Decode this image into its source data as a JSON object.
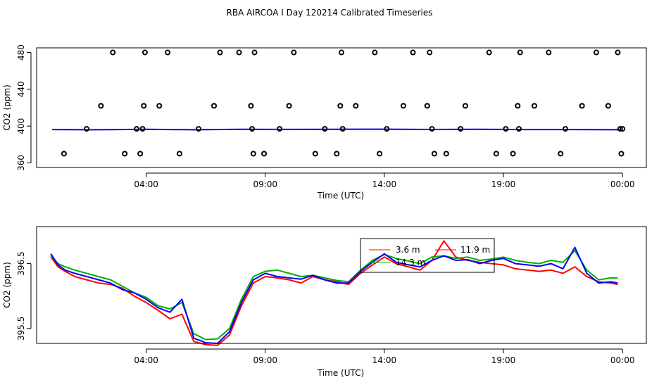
{
  "title": "RBA AIRCOA I  Day 120214  Calibrated Timeseries",
  "chart_data": [
    {
      "type": "line+scatter",
      "name": "top-panel",
      "xlabel": "Time (UTC)",
      "ylabel": "CO2 (ppm)",
      "x_unit": "hours since 00:00",
      "xlim": [
        -0.6,
        25.0
      ],
      "ylim": [
        355,
        485
      ],
      "xticks": [
        4,
        9,
        14,
        19,
        24
      ],
      "xtick_labels": [
        "04:00",
        "09:00",
        "14:00",
        "19:00",
        "00:00"
      ],
      "yticks": [
        360,
        400,
        440,
        480
      ],
      "ytick_labels": [
        "360",
        "400",
        "440",
        "480"
      ],
      "line_series": [
        {
          "name": "blue",
          "color": "#0000ff",
          "x": [
            0.05,
            2,
            4,
            6,
            8,
            10,
            12,
            14,
            16,
            18,
            20,
            22,
            23.9
          ],
          "y": [
            396.2,
            396.0,
            396.5,
            396.0,
            396.5,
            396.4,
            396.5,
            396.6,
            396.3,
            396.5,
            396.2,
            396.2,
            396.0
          ]
        }
      ],
      "points": {
        "x": [
          0.55,
          1.5,
          2.1,
          2.6,
          3.1,
          3.6,
          3.75,
          3.85,
          3.9,
          3.95,
          4.55,
          4.9,
          5.4,
          6.2,
          6.85,
          7.1,
          7.9,
          8.4,
          8.45,
          8.5,
          8.55,
          8.95,
          9.6,
          10.0,
          10.2,
          11.1,
          11.5,
          12.0,
          12.15,
          12.2,
          12.25,
          12.8,
          13.6,
          13.8,
          14.1,
          14.8,
          15.2,
          15.8,
          15.9,
          16.0,
          16.1,
          16.6,
          17.2,
          17.4,
          18.4,
          18.7,
          19.1,
          19.4,
          19.6,
          19.65,
          19.7,
          20.3,
          20.9,
          21.4,
          21.6,
          22.3,
          22.9,
          23.4,
          23.8,
          23.9,
          23.95,
          24.0
        ],
        "y": [
          370,
          397,
          422,
          480,
          370,
          397,
          370,
          397,
          422,
          480,
          422,
          480,
          370,
          397,
          422,
          480,
          480,
          422,
          397,
          370,
          480,
          370,
          397,
          422,
          480,
          370,
          397,
          370,
          422,
          480,
          397,
          422,
          480,
          370,
          397,
          422,
          480,
          422,
          480,
          397,
          370,
          370,
          397,
          422,
          480,
          370,
          397,
          370,
          422,
          397,
          480,
          422,
          480,
          370,
          397,
          422,
          480,
          422,
          480,
          397,
          370,
          397
        ]
      }
    },
    {
      "type": "line",
      "name": "bottom-panel",
      "xlabel": "Time (UTC)",
      "ylabel": "CO2 (ppm)",
      "x_unit": "hours since 00:00",
      "xlim": [
        -0.6,
        25.0
      ],
      "ylim": [
        395.27,
        397.07
      ],
      "xticks": [
        4,
        9,
        14,
        19,
        24
      ],
      "xtick_labels": [
        "04:00",
        "09:00",
        "14:00",
        "19:00",
        "00:00"
      ],
      "yticks": [
        395.5,
        396.5
      ],
      "ytick_labels": [
        "395.5",
        "396.5"
      ],
      "legend_position": "top-right",
      "series": [
        {
          "name": "3.6 m",
          "color": "#ff0000",
          "x": [
            0.0,
            0.3,
            0.6,
            1.0,
            1.5,
            2.0,
            2.5,
            3.0,
            3.5,
            4.0,
            4.5,
            5.0,
            5.5,
            6.0,
            6.5,
            7.0,
            7.5,
            8.0,
            8.5,
            9.0,
            9.5,
            10.0,
            10.5,
            11.0,
            11.5,
            12.0,
            12.5,
            13.0,
            13.5,
            14.0,
            14.5,
            15.0,
            15.5,
            16.0,
            16.5,
            17.0,
            17.5,
            18.0,
            18.5,
            19.0,
            19.5,
            20.0,
            20.5,
            21.0,
            21.5,
            22.0,
            22.5,
            23.0,
            23.5,
            23.8
          ],
          "y": [
            396.6,
            396.45,
            396.38,
            396.3,
            396.25,
            396.2,
            396.18,
            396.12,
            396.0,
            395.9,
            395.78,
            395.65,
            395.72,
            395.3,
            395.25,
            395.24,
            395.4,
            395.85,
            396.2,
            396.3,
            396.28,
            396.25,
            396.2,
            396.3,
            396.25,
            396.22,
            396.18,
            396.35,
            396.48,
            396.6,
            396.5,
            396.45,
            396.4,
            396.55,
            396.85,
            396.6,
            396.55,
            396.52,
            396.5,
            396.48,
            396.42,
            396.4,
            396.38,
            396.4,
            396.35,
            396.45,
            396.3,
            396.22,
            396.2,
            396.18
          ]
        },
        {
          "name": "11.9 m",
          "color": "#00b000",
          "x": [
            0.0,
            0.3,
            0.6,
            1.0,
            1.5,
            2.0,
            2.5,
            3.0,
            3.5,
            4.0,
            4.5,
            5.0,
            5.5,
            6.0,
            6.5,
            7.0,
            7.5,
            8.0,
            8.5,
            9.0,
            9.5,
            10.0,
            10.5,
            11.0,
            11.5,
            12.0,
            12.5,
            13.0,
            13.5,
            14.0,
            14.5,
            15.0,
            15.5,
            16.0,
            16.5,
            17.0,
            17.5,
            18.0,
            18.5,
            19.0,
            19.5,
            20.0,
            20.5,
            21.0,
            21.5,
            22.0,
            22.5,
            23.0,
            23.5,
            23.8
          ],
          "y": [
            396.62,
            396.5,
            396.45,
            396.4,
            396.35,
            396.3,
            396.25,
            396.15,
            396.05,
            395.98,
            395.85,
            395.8,
            395.9,
            395.42,
            395.33,
            395.34,
            395.5,
            395.95,
            396.3,
            396.38,
            396.4,
            396.35,
            396.3,
            396.32,
            396.28,
            396.24,
            396.22,
            396.4,
            396.55,
            396.64,
            396.58,
            396.54,
            396.5,
            396.6,
            396.62,
            396.58,
            396.6,
            396.55,
            396.57,
            396.6,
            396.55,
            396.52,
            396.5,
            396.55,
            396.52,
            396.7,
            396.4,
            396.25,
            396.28,
            396.28
          ]
        },
        {
          "name": "14.3 m",
          "color": "#0000ff",
          "x": [
            0.0,
            0.3,
            0.6,
            1.0,
            1.5,
            2.0,
            2.5,
            3.0,
            3.5,
            4.0,
            4.5,
            5.0,
            5.5,
            6.0,
            6.5,
            7.0,
            7.5,
            8.0,
            8.5,
            9.0,
            9.5,
            10.0,
            10.5,
            11.0,
            11.5,
            12.0,
            12.5,
            13.0,
            13.5,
            14.0,
            14.5,
            15.0,
            15.5,
            16.0,
            16.5,
            17.0,
            17.5,
            18.0,
            18.5,
            19.0,
            19.5,
            20.0,
            20.5,
            21.0,
            21.5,
            22.0,
            22.5,
            23.0,
            23.5,
            23.8
          ],
          "y": [
            396.65,
            396.48,
            396.4,
            396.35,
            396.3,
            396.25,
            396.2,
            396.1,
            396.05,
            395.95,
            395.82,
            395.75,
            395.95,
            395.35,
            395.28,
            395.27,
            395.45,
            395.9,
            396.25,
            396.35,
            396.3,
            396.28,
            396.26,
            396.32,
            396.25,
            396.2,
            396.2,
            396.38,
            396.52,
            396.65,
            396.52,
            396.48,
            396.45,
            396.55,
            396.62,
            396.55,
            396.56,
            396.5,
            396.55,
            396.58,
            396.5,
            396.48,
            396.46,
            396.5,
            396.42,
            396.75,
            396.35,
            396.2,
            396.22,
            396.2
          ]
        }
      ]
    }
  ]
}
